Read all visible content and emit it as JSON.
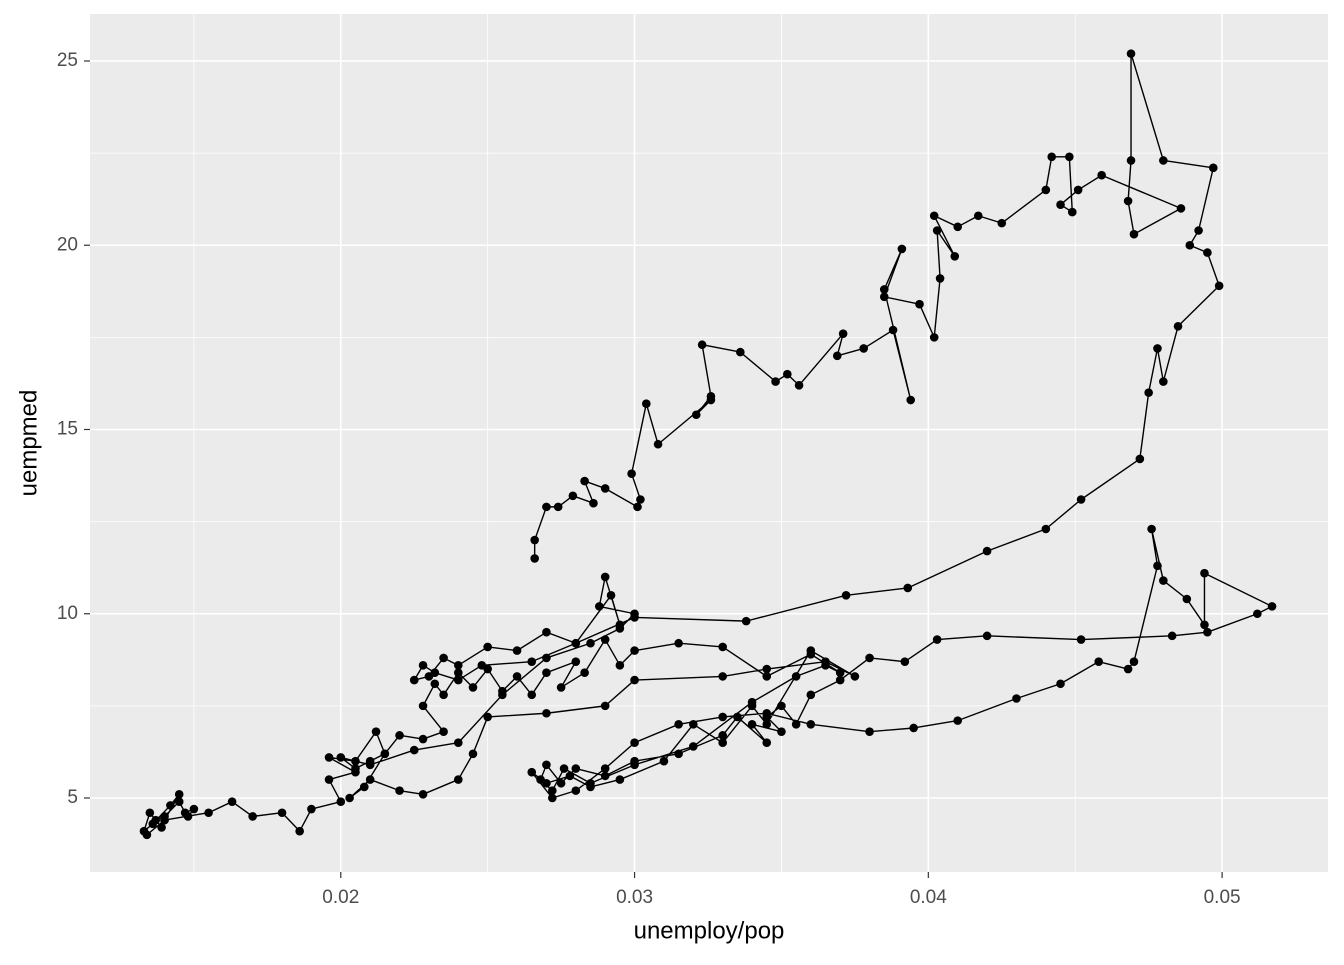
{
  "chart_data": {
    "type": "scatter",
    "line": true,
    "color": "#000000",
    "grid": true,
    "xlabel": "unemploy/pop",
    "ylabel": "uempmed",
    "xlim": [
      0.011463,
      0.053605
    ],
    "ylim": [
      2.992,
      26.275
    ],
    "xticks": [
      0.02,
      0.03,
      0.04,
      0.05
    ],
    "yticks": [
      5,
      10,
      15,
      20,
      25
    ],
    "x": [
      0.0148,
      0.015,
      0.0147,
      0.0145,
      0.014,
      0.0137,
      0.0139,
      0.0135,
      0.0133,
      0.0136,
      0.0142,
      0.0145,
      0.014,
      0.0134,
      0.014,
      0.0155,
      0.0163,
      0.017,
      0.018,
      0.0186,
      0.019,
      0.02,
      0.0196,
      0.0205,
      0.0196,
      0.0205,
      0.0212,
      0.0215,
      0.0208,
      0.0203,
      0.021,
      0.022,
      0.0228,
      0.024,
      0.0245,
      0.025,
      0.027,
      0.029,
      0.03,
      0.033,
      0.0345,
      0.0365,
      0.0375,
      0.036,
      0.0345,
      0.034,
      0.033,
      0.032,
      0.031,
      0.0295,
      0.0285,
      0.0278,
      0.027,
      0.0265,
      0.0272,
      0.028,
      0.029,
      0.03,
      0.0315,
      0.033,
      0.0345,
      0.036,
      0.038,
      0.0395,
      0.041,
      0.043,
      0.0445,
      0.0458,
      0.0468,
      0.047,
      0.0478,
      0.0476,
      0.048,
      0.0488,
      0.0494,
      0.0494,
      0.0517,
      0.0512,
      0.0495,
      0.0483,
      0.0452,
      0.042,
      0.0403,
      0.0392,
      0.038,
      0.037,
      0.036,
      0.0355,
      0.035,
      0.0345,
      0.035,
      0.034,
      0.0345,
      0.0335,
      0.033,
      0.0315,
      0.03,
      0.029,
      0.028,
      0.0275,
      0.027,
      0.0268,
      0.0272,
      0.0276,
      0.0285,
      0.03,
      0.032,
      0.034,
      0.0355,
      0.0365,
      0.037,
      0.036,
      0.0345,
      0.033,
      0.0315,
      0.03,
      0.0295,
      0.029,
      0.0283,
      0.0275,
      0.028,
      0.027,
      0.0265,
      0.026,
      0.0255,
      0.025,
      0.0245,
      0.024,
      0.0235,
      0.0232,
      0.0228,
      0.0235,
      0.0228,
      0.022,
      0.0215,
      0.021,
      0.0205,
      0.02,
      0.021,
      0.0225,
      0.024,
      0.0255,
      0.027,
      0.0285,
      0.0295,
      0.03,
      0.0288,
      0.029,
      0.0295,
      0.0292,
      0.028,
      0.027,
      0.026,
      0.025,
      0.024,
      0.0235,
      0.023,
      0.0225,
      0.0228,
      0.0232,
      0.024,
      0.0248,
      0.0265,
      0.028,
      0.03,
      0.0338,
      0.0372,
      0.0393,
      0.042,
      0.044,
      0.0452,
      0.0472,
      0.0475,
      0.0478,
      0.048,
      0.0485,
      0.0499,
      0.0495,
      0.0489,
      0.0492,
      0.0497,
      0.048,
      0.0469,
      0.0469,
      0.0468,
      0.047,
      0.0486,
      0.0459,
      0.0451,
      0.0445,
      0.0449,
      0.0448,
      0.0442,
      0.044,
      0.0425,
      0.0417,
      0.041,
      0.0402,
      0.0409,
      0.0403,
      0.0404,
      0.0402,
      0.0397,
      0.0385,
      0.0391,
      0.0385,
      0.0394,
      0.0388,
      0.0378,
      0.0369,
      0.0371,
      0.0356,
      0.0352,
      0.0348,
      0.0336,
      0.0323,
      0.0326,
      0.0321,
      0.0326,
      0.0308,
      0.0304,
      0.0299,
      0.0302,
      0.0301,
      0.029,
      0.0283,
      0.0286,
      0.0279,
      0.0274,
      0.027,
      0.0266,
      0.0266
    ],
    "y": [
      4.5,
      4.7,
      4.6,
      4.9,
      4.5,
      4.4,
      4.2,
      4.6,
      4.1,
      4.3,
      4.8,
      5.1,
      4.4,
      4.0,
      4.4,
      4.6,
      4.9,
      4.5,
      4.6,
      4.1,
      4.7,
      4.9,
      5.5,
      5.7,
      6.1,
      6.0,
      6.8,
      6.2,
      5.3,
      5.0,
      5.5,
      5.2,
      5.1,
      5.5,
      6.2,
      7.2,
      7.3,
      7.5,
      8.2,
      8.3,
      8.5,
      8.7,
      8.3,
      9.0,
      7.0,
      7.5,
      6.5,
      7.0,
      6.0,
      5.5,
      5.3,
      5.6,
      5.4,
      5.7,
      5.0,
      5.2,
      5.8,
      6.5,
      7.0,
      7.2,
      7.3,
      7.0,
      6.8,
      6.9,
      7.1,
      7.7,
      8.1,
      8.7,
      8.5,
      8.7,
      11.3,
      12.3,
      10.9,
      10.4,
      9.7,
      11.1,
      10.2,
      10.0,
      9.5,
      9.4,
      9.3,
      9.4,
      9.3,
      8.7,
      8.8,
      8.2,
      7.8,
      7.0,
      7.5,
      7.2,
      6.8,
      7.0,
      6.5,
      7.2,
      6.7,
      6.2,
      6.0,
      5.6,
      5.8,
      5.4,
      5.9,
      5.5,
      5.2,
      5.8,
      5.4,
      5.9,
      6.4,
      7.6,
      8.3,
      8.6,
      8.4,
      8.9,
      8.3,
      9.1,
      9.2,
      9.0,
      8.6,
      9.3,
      8.4,
      8.0,
      8.7,
      8.4,
      7.8,
      8.3,
      7.9,
      8.5,
      8.0,
      8.4,
      7.8,
      8.1,
      7.5,
      6.8,
      6.6,
      6.7,
      6.2,
      6.0,
      5.8,
      6.1,
      5.9,
      6.3,
      6.5,
      7.8,
      8.8,
      9.2,
      9.6,
      10.0,
      10.2,
      11.0,
      9.7,
      10.5,
      9.2,
      9.5,
      9.0,
      9.1,
      8.6,
      8.8,
      8.3,
      8.2,
      8.6,
      8.4,
      8.2,
      8.6,
      8.7,
      9.2,
      9.9,
      9.8,
      10.5,
      10.7,
      11.7,
      12.3,
      13.1,
      14.2,
      16.0,
      17.2,
      16.3,
      17.8,
      18.9,
      19.8,
      20.0,
      20.4,
      22.1,
      22.3,
      25.2,
      22.3,
      21.2,
      20.3,
      21.0,
      21.9,
      21.5,
      21.1,
      20.9,
      22.4,
      22.4,
      21.5,
      20.6,
      20.8,
      20.5,
      20.8,
      19.7,
      20.4,
      19.1,
      17.5,
      18.4,
      18.6,
      19.9,
      18.8,
      15.8,
      17.7,
      17.2,
      17.0,
      17.6,
      16.2,
      16.5,
      16.3,
      17.1,
      17.3,
      15.9,
      15.4,
      15.8,
      14.6,
      15.7,
      13.8,
      13.1,
      12.9,
      13.4,
      13.6,
      13.0,
      13.2,
      12.9,
      12.9,
      12.0,
      11.5
    ]
  }
}
